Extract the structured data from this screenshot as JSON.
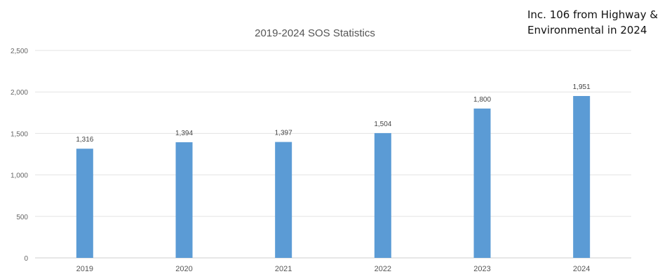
{
  "annotation": "Inc. 106 from Highway &\nEnvironmental in 2024",
  "chart_data": {
    "type": "bar",
    "title": "2019-2024 SOS Statistics",
    "xlabel": "",
    "ylabel": "",
    "categories": [
      "2019",
      "2020",
      "2021",
      "2022",
      "2023",
      "2024"
    ],
    "values": [
      1316,
      1394,
      1397,
      1504,
      1800,
      1951
    ],
    "value_labels": [
      "1,316",
      "1,394",
      "1,397",
      "1,504",
      "1,800",
      "1,951"
    ],
    "ylim": [
      0,
      2500
    ],
    "yticks": [
      0,
      500,
      1000,
      1500,
      2000,
      2500
    ],
    "ytick_labels": [
      "0",
      "500",
      "1,000",
      "1,500",
      "2,000",
      "2,500"
    ],
    "grid": true,
    "legend": "none",
    "bar_color": "#5b9bd5",
    "grid_color": "#e3e3e3"
  }
}
